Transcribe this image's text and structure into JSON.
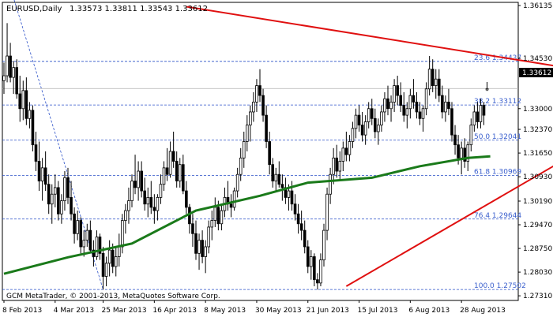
{
  "header": {
    "symbol_tf": "EURUSD,Daily",
    "ohlc": "1.33573 1.33811 1.33543 1.33612"
  },
  "footer": {
    "copyright": "GCM MetaTrader, © 2001-2013, MetaQuotes Software Corp."
  },
  "current_price_label": "1.33612",
  "colors": {
    "background": "#ffffff",
    "candles": "#000000",
    "moving_average": "#1a7a1a",
    "trendlines": "#e01010",
    "fib_lines": "#2b50c8",
    "fib_text": "#3a5fcd",
    "price_line": "#b0b0b0",
    "axis": "#000000"
  },
  "chart_data": {
    "type": "candlestick",
    "instrument": "EURUSD",
    "timeframe": "Daily",
    "ylim": [
      1.27265,
      1.36135
    ],
    "y_ticks": [
      "1.36135",
      "1.34530",
      "1.33000",
      "1.32370",
      "1.31650",
      "1.30930",
      "1.30190",
      "1.29470",
      "1.28750",
      "1.28030",
      "1.27310"
    ],
    "x_ticks": [
      "8 Feb 2013",
      "4 Mar 2013",
      "25 Mar 2013",
      "16 Apr 2013",
      "8 May 2013",
      "30 May 2013",
      "21 Jun 2013",
      "15 Jul 2013",
      "6 Aug 2013",
      "28 Aug 2013"
    ],
    "x_tick_bar_index": [
      0,
      16,
      31,
      47,
      63,
      79,
      95,
      111,
      127,
      143
    ],
    "last_price": 1.33612,
    "fib_levels": [
      {
        "label": "23.6",
        "value": 1.34437
      },
      {
        "label": "38.2",
        "value": 1.33112
      },
      {
        "label": "50.0",
        "value": 1.32041
      },
      {
        "label": "61.8",
        "value": 1.30969
      },
      {
        "label": "76.4",
        "value": 1.29644
      },
      {
        "label": "100.0",
        "value": 1.27502
      }
    ],
    "fib_value_text": [
      "1.34437",
      "1.33112",
      "1.32041",
      "1.30969",
      "1.29644",
      "1.27502"
    ],
    "trendlines": [
      {
        "name": "resistance",
        "from": {
          "bar": 57,
          "price": 1.361
        },
        "to": {
          "bar": 185,
          "price": 1.341
        }
      },
      {
        "name": "support",
        "from": {
          "bar": 107,
          "price": 1.276
        },
        "to": {
          "bar": 185,
          "price": 1.32
        }
      }
    ],
    "fib_anchor": {
      "from": {
        "bar": 1,
        "price": 1.37
      },
      "to": {
        "bar": 31,
        "price": 1.275
      }
    },
    "moving_average_points": [
      [
        0,
        1.2798
      ],
      [
        20,
        1.2848
      ],
      [
        40,
        1.289
      ],
      [
        60,
        1.299
      ],
      [
        80,
        1.3035
      ],
      [
        95,
        1.3075
      ],
      [
        115,
        1.309
      ],
      [
        130,
        1.3125
      ],
      [
        145,
        1.315
      ],
      [
        152,
        1.3155
      ]
    ],
    "candles": [
      {
        "o": 1.3385,
        "h": 1.344,
        "l": 1.3345,
        "c": 1.34
      },
      {
        "o": 1.34,
        "h": 1.356,
        "l": 1.338,
        "c": 1.346
      },
      {
        "o": 1.346,
        "h": 1.35,
        "l": 1.338,
        "c": 1.3395
      },
      {
        "o": 1.3395,
        "h": 1.3445,
        "l": 1.3345,
        "c": 1.3425
      },
      {
        "o": 1.3425,
        "h": 1.345,
        "l": 1.333,
        "c": 1.3345
      },
      {
        "o": 1.3345,
        "h": 1.34,
        "l": 1.326,
        "c": 1.33
      },
      {
        "o": 1.33,
        "h": 1.3385,
        "l": 1.3265,
        "c": 1.3355
      },
      {
        "o": 1.3355,
        "h": 1.3395,
        "l": 1.325,
        "c": 1.327
      },
      {
        "o": 1.327,
        "h": 1.332,
        "l": 1.324,
        "c": 1.3295
      },
      {
        "o": 1.3295,
        "h": 1.331,
        "l": 1.317,
        "c": 1.319
      },
      {
        "o": 1.319,
        "h": 1.323,
        "l": 1.311,
        "c": 1.314
      },
      {
        "o": 1.314,
        "h": 1.32,
        "l": 1.305,
        "c": 1.308
      },
      {
        "o": 1.308,
        "h": 1.315,
        "l": 1.302,
        "c": 1.312
      },
      {
        "o": 1.312,
        "h": 1.317,
        "l": 1.305,
        "c": 1.307
      },
      {
        "o": 1.307,
        "h": 1.31,
        "l": 1.298,
        "c": 1.301
      },
      {
        "o": 1.301,
        "h": 1.307,
        "l": 1.295,
        "c": 1.304
      },
      {
        "o": 1.304,
        "h": 1.31,
        "l": 1.3,
        "c": 1.306
      },
      {
        "o": 1.306,
        "h": 1.308,
        "l": 1.296,
        "c": 1.298
      },
      {
        "o": 1.298,
        "h": 1.304,
        "l": 1.295,
        "c": 1.302
      },
      {
        "o": 1.302,
        "h": 1.311,
        "l": 1.299,
        "c": 1.309
      },
      {
        "o": 1.309,
        "h": 1.312,
        "l": 1.301,
        "c": 1.303
      },
      {
        "o": 1.303,
        "h": 1.308,
        "l": 1.296,
        "c": 1.298
      },
      {
        "o": 1.298,
        "h": 1.3,
        "l": 1.289,
        "c": 1.292
      },
      {
        "o": 1.292,
        "h": 1.299,
        "l": 1.29,
        "c": 1.296
      },
      {
        "o": 1.296,
        "h": 1.297,
        "l": 1.286,
        "c": 1.288
      },
      {
        "o": 1.288,
        "h": 1.293,
        "l": 1.285,
        "c": 1.29
      },
      {
        "o": 1.29,
        "h": 1.295,
        "l": 1.288,
        "c": 1.293
      },
      {
        "o": 1.293,
        "h": 1.296,
        "l": 1.286,
        "c": 1.287
      },
      {
        "o": 1.287,
        "h": 1.29,
        "l": 1.282,
        "c": 1.285
      },
      {
        "o": 1.285,
        "h": 1.293,
        "l": 1.284,
        "c": 1.291
      },
      {
        "o": 1.291,
        "h": 1.292,
        "l": 1.284,
        "c": 1.286
      },
      {
        "o": 1.286,
        "h": 1.288,
        "l": 1.275,
        "c": 1.279
      },
      {
        "o": 1.279,
        "h": 1.285,
        "l": 1.276,
        "c": 1.283
      },
      {
        "o": 1.283,
        "h": 1.29,
        "l": 1.279,
        "c": 1.287
      },
      {
        "o": 1.287,
        "h": 1.289,
        "l": 1.28,
        "c": 1.282
      },
      {
        "o": 1.282,
        "h": 1.288,
        "l": 1.279,
        "c": 1.285
      },
      {
        "o": 1.285,
        "h": 1.292,
        "l": 1.282,
        "c": 1.288
      },
      {
        "o": 1.288,
        "h": 1.298,
        "l": 1.286,
        "c": 1.296
      },
      {
        "o": 1.296,
        "h": 1.301,
        "l": 1.292,
        "c": 1.299
      },
      {
        "o": 1.299,
        "h": 1.306,
        "l": 1.295,
        "c": 1.302
      },
      {
        "o": 1.302,
        "h": 1.31,
        "l": 1.3,
        "c": 1.308
      },
      {
        "o": 1.308,
        "h": 1.316,
        "l": 1.304,
        "c": 1.306
      },
      {
        "o": 1.306,
        "h": 1.314,
        "l": 1.302,
        "c": 1.311
      },
      {
        "o": 1.311,
        "h": 1.314,
        "l": 1.303,
        "c": 1.305
      },
      {
        "o": 1.305,
        "h": 1.309,
        "l": 1.299,
        "c": 1.301
      },
      {
        "o": 1.301,
        "h": 1.306,
        "l": 1.297,
        "c": 1.303
      },
      {
        "o": 1.303,
        "h": 1.308,
        "l": 1.298,
        "c": 1.3
      },
      {
        "o": 1.3,
        "h": 1.304,
        "l": 1.295,
        "c": 1.299
      },
      {
        "o": 1.299,
        "h": 1.304,
        "l": 1.296,
        "c": 1.303
      },
      {
        "o": 1.303,
        "h": 1.31,
        "l": 1.301,
        "c": 1.307
      },
      {
        "o": 1.307,
        "h": 1.314,
        "l": 1.305,
        "c": 1.312
      },
      {
        "o": 1.312,
        "h": 1.318,
        "l": 1.308,
        "c": 1.31
      },
      {
        "o": 1.31,
        "h": 1.32,
        "l": 1.309,
        "c": 1.317
      },
      {
        "o": 1.317,
        "h": 1.323,
        "l": 1.312,
        "c": 1.314
      },
      {
        "o": 1.314,
        "h": 1.317,
        "l": 1.306,
        "c": 1.308
      },
      {
        "o": 1.308,
        "h": 1.315,
        "l": 1.306,
        "c": 1.313
      },
      {
        "o": 1.313,
        "h": 1.316,
        "l": 1.304,
        "c": 1.305
      },
      {
        "o": 1.305,
        "h": 1.308,
        "l": 1.298,
        "c": 1.3
      },
      {
        "o": 1.3,
        "h": 1.301,
        "l": 1.292,
        "c": 1.295
      },
      {
        "o": 1.295,
        "h": 1.298,
        "l": 1.288,
        "c": 1.292
      },
      {
        "o": 1.292,
        "h": 1.296,
        "l": 1.284,
        "c": 1.286
      },
      {
        "o": 1.286,
        "h": 1.292,
        "l": 1.281,
        "c": 1.29
      },
      {
        "o": 1.29,
        "h": 1.293,
        "l": 1.283,
        "c": 1.285
      },
      {
        "o": 1.285,
        "h": 1.29,
        "l": 1.28,
        "c": 1.288
      },
      {
        "o": 1.288,
        "h": 1.296,
        "l": 1.286,
        "c": 1.294
      },
      {
        "o": 1.294,
        "h": 1.299,
        "l": 1.29,
        "c": 1.296
      },
      {
        "o": 1.296,
        "h": 1.303,
        "l": 1.294,
        "c": 1.3
      },
      {
        "o": 1.3,
        "h": 1.302,
        "l": 1.293,
        "c": 1.295
      },
      {
        "o": 1.295,
        "h": 1.301,
        "l": 1.293,
        "c": 1.299
      },
      {
        "o": 1.299,
        "h": 1.306,
        "l": 1.297,
        "c": 1.303
      },
      {
        "o": 1.303,
        "h": 1.308,
        "l": 1.299,
        "c": 1.301
      },
      {
        "o": 1.301,
        "h": 1.304,
        "l": 1.297,
        "c": 1.3
      },
      {
        "o": 1.3,
        "h": 1.306,
        "l": 1.299,
        "c": 1.305
      },
      {
        "o": 1.305,
        "h": 1.312,
        "l": 1.303,
        "c": 1.31
      },
      {
        "o": 1.31,
        "h": 1.318,
        "l": 1.308,
        "c": 1.315
      },
      {
        "o": 1.315,
        "h": 1.323,
        "l": 1.312,
        "c": 1.32
      },
      {
        "o": 1.32,
        "h": 1.328,
        "l": 1.317,
        "c": 1.325
      },
      {
        "o": 1.325,
        "h": 1.331,
        "l": 1.32,
        "c": 1.329
      },
      {
        "o": 1.329,
        "h": 1.335,
        "l": 1.326,
        "c": 1.332
      },
      {
        "o": 1.332,
        "h": 1.339,
        "l": 1.329,
        "c": 1.337
      },
      {
        "o": 1.337,
        "h": 1.342,
        "l": 1.332,
        "c": 1.334
      },
      {
        "o": 1.334,
        "h": 1.336,
        "l": 1.326,
        "c": 1.328
      },
      {
        "o": 1.328,
        "h": 1.331,
        "l": 1.318,
        "c": 1.32
      },
      {
        "o": 1.32,
        "h": 1.323,
        "l": 1.31,
        "c": 1.313
      },
      {
        "o": 1.313,
        "h": 1.315,
        "l": 1.306,
        "c": 1.308
      },
      {
        "o": 1.308,
        "h": 1.312,
        "l": 1.305,
        "c": 1.31
      },
      {
        "o": 1.31,
        "h": 1.314,
        "l": 1.306,
        "c": 1.307
      },
      {
        "o": 1.307,
        "h": 1.31,
        "l": 1.302,
        "c": 1.306
      },
      {
        "o": 1.306,
        "h": 1.309,
        "l": 1.301,
        "c": 1.303
      },
      {
        "o": 1.303,
        "h": 1.307,
        "l": 1.299,
        "c": 1.305
      },
      {
        "o": 1.305,
        "h": 1.308,
        "l": 1.299,
        "c": 1.301
      },
      {
        "o": 1.301,
        "h": 1.304,
        "l": 1.296,
        "c": 1.298
      },
      {
        "o": 1.298,
        "h": 1.301,
        "l": 1.292,
        "c": 1.295
      },
      {
        "o": 1.295,
        "h": 1.299,
        "l": 1.29,
        "c": 1.293
      },
      {
        "o": 1.293,
        "h": 1.296,
        "l": 1.286,
        "c": 1.288
      },
      {
        "o": 1.288,
        "h": 1.29,
        "l": 1.28,
        "c": 1.282
      },
      {
        "o": 1.282,
        "h": 1.287,
        "l": 1.278,
        "c": 1.285
      },
      {
        "o": 1.285,
        "h": 1.286,
        "l": 1.276,
        "c": 1.278
      },
      {
        "o": 1.278,
        "h": 1.28,
        "l": 1.275,
        "c": 1.277
      },
      {
        "o": 1.277,
        "h": 1.286,
        "l": 1.276,
        "c": 1.284
      },
      {
        "o": 1.284,
        "h": 1.295,
        "l": 1.282,
        "c": 1.293
      },
      {
        "o": 1.293,
        "h": 1.306,
        "l": 1.29,
        "c": 1.304
      },
      {
        "o": 1.304,
        "h": 1.312,
        "l": 1.301,
        "c": 1.31
      },
      {
        "o": 1.31,
        "h": 1.318,
        "l": 1.307,
        "c": 1.315
      },
      {
        "o": 1.315,
        "h": 1.319,
        "l": 1.309,
        "c": 1.311
      },
      {
        "o": 1.311,
        "h": 1.317,
        "l": 1.308,
        "c": 1.314
      },
      {
        "o": 1.314,
        "h": 1.32,
        "l": 1.311,
        "c": 1.318
      },
      {
        "o": 1.318,
        "h": 1.323,
        "l": 1.314,
        "c": 1.316
      },
      {
        "o": 1.316,
        "h": 1.322,
        "l": 1.314,
        "c": 1.32
      },
      {
        "o": 1.32,
        "h": 1.326,
        "l": 1.318,
        "c": 1.324
      },
      {
        "o": 1.324,
        "h": 1.33,
        "l": 1.321,
        "c": 1.328
      },
      {
        "o": 1.328,
        "h": 1.331,
        "l": 1.323,
        "c": 1.325
      },
      {
        "o": 1.325,
        "h": 1.329,
        "l": 1.32,
        "c": 1.322
      },
      {
        "o": 1.322,
        "h": 1.328,
        "l": 1.319,
        "c": 1.326
      },
      {
        "o": 1.326,
        "h": 1.332,
        "l": 1.324,
        "c": 1.33
      },
      {
        "o": 1.33,
        "h": 1.333,
        "l": 1.325,
        "c": 1.327
      },
      {
        "o": 1.327,
        "h": 1.33,
        "l": 1.321,
        "c": 1.323
      },
      {
        "o": 1.323,
        "h": 1.327,
        "l": 1.319,
        "c": 1.325
      },
      {
        "o": 1.325,
        "h": 1.331,
        "l": 1.323,
        "c": 1.329
      },
      {
        "o": 1.329,
        "h": 1.335,
        "l": 1.326,
        "c": 1.333
      },
      {
        "o": 1.333,
        "h": 1.337,
        "l": 1.328,
        "c": 1.33
      },
      {
        "o": 1.33,
        "h": 1.334,
        "l": 1.326,
        "c": 1.332
      },
      {
        "o": 1.332,
        "h": 1.339,
        "l": 1.329,
        "c": 1.337
      },
      {
        "o": 1.337,
        "h": 1.34,
        "l": 1.331,
        "c": 1.334
      },
      {
        "o": 1.334,
        "h": 1.338,
        "l": 1.329,
        "c": 1.331
      },
      {
        "o": 1.331,
        "h": 1.335,
        "l": 1.326,
        "c": 1.328
      },
      {
        "o": 1.328,
        "h": 1.332,
        "l": 1.324,
        "c": 1.33
      },
      {
        "o": 1.33,
        "h": 1.336,
        "l": 1.327,
        "c": 1.334
      },
      {
        "o": 1.334,
        "h": 1.339,
        "l": 1.33,
        "c": 1.332
      },
      {
        "o": 1.332,
        "h": 1.335,
        "l": 1.327,
        "c": 1.329
      },
      {
        "o": 1.329,
        "h": 1.332,
        "l": 1.325,
        "c": 1.327
      },
      {
        "o": 1.327,
        "h": 1.331,
        "l": 1.323,
        "c": 1.33
      },
      {
        "o": 1.33,
        "h": 1.338,
        "l": 1.328,
        "c": 1.336
      },
      {
        "o": 1.336,
        "h": 1.346,
        "l": 1.334,
        "c": 1.342
      },
      {
        "o": 1.342,
        "h": 1.345,
        "l": 1.335,
        "c": 1.337
      },
      {
        "o": 1.337,
        "h": 1.342,
        "l": 1.333,
        "c": 1.339
      },
      {
        "o": 1.339,
        "h": 1.342,
        "l": 1.332,
        "c": 1.334
      },
      {
        "o": 1.334,
        "h": 1.337,
        "l": 1.327,
        "c": 1.329
      },
      {
        "o": 1.329,
        "h": 1.334,
        "l": 1.326,
        "c": 1.332
      },
      {
        "o": 1.332,
        "h": 1.336,
        "l": 1.328,
        "c": 1.33
      },
      {
        "o": 1.33,
        "h": 1.332,
        "l": 1.32,
        "c": 1.322
      },
      {
        "o": 1.322,
        "h": 1.325,
        "l": 1.316,
        "c": 1.319
      },
      {
        "o": 1.319,
        "h": 1.322,
        "l": 1.313,
        "c": 1.315
      },
      {
        "o": 1.315,
        "h": 1.32,
        "l": 1.31,
        "c": 1.318
      },
      {
        "o": 1.318,
        "h": 1.321,
        "l": 1.312,
        "c": 1.314
      },
      {
        "o": 1.314,
        "h": 1.32,
        "l": 1.311,
        "c": 1.319
      },
      {
        "o": 1.319,
        "h": 1.327,
        "l": 1.317,
        "c": 1.325
      },
      {
        "o": 1.325,
        "h": 1.331,
        "l": 1.323,
        "c": 1.329
      },
      {
        "o": 1.329,
        "h": 1.332,
        "l": 1.324,
        "c": 1.326
      },
      {
        "o": 1.326,
        "h": 1.333,
        "l": 1.324,
        "c": 1.331
      },
      {
        "o": 1.331,
        "h": 1.332,
        "l": 1.325,
        "c": 1.328
      },
      {
        "o": 1.3357,
        "h": 1.3381,
        "l": 1.3354,
        "c": 1.3361
      }
    ]
  }
}
